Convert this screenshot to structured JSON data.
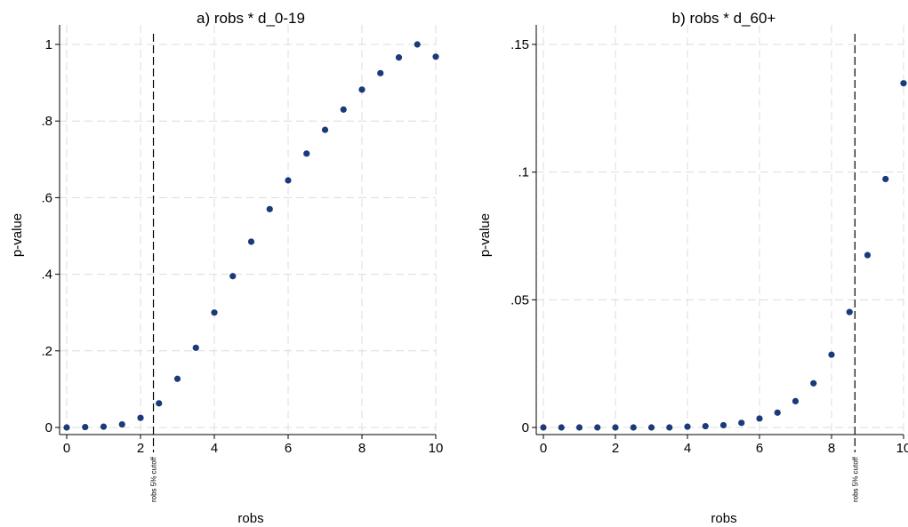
{
  "chart_data": [
    {
      "type": "scatter",
      "title": "a) robs * d_0-19",
      "xlabel": "robs",
      "ylabel": "p-value",
      "xlim": [
        0,
        10
      ],
      "ylim": [
        0,
        1
      ],
      "xticks": [
        0,
        2,
        4,
        6,
        8,
        10
      ],
      "xtick_labels": [
        "0",
        "2",
        "4",
        "6",
        "8",
        "10"
      ],
      "yticks": [
        0,
        0.2,
        0.4,
        0.6,
        0.8,
        1
      ],
      "ytick_labels": [
        "0",
        ".2",
        ".4",
        ".6",
        ".8",
        "1"
      ],
      "grid": true,
      "cutoff": {
        "x": 2.35,
        "label": "robs 5% cutoff"
      },
      "x": [
        0,
        0.5,
        1,
        1.5,
        2,
        2.5,
        3,
        3.5,
        4,
        4.5,
        5,
        5.5,
        6,
        6.5,
        7,
        7.5,
        8,
        8.5,
        9,
        9.5,
        10
      ],
      "y": [
        0.0,
        0.001,
        0.002,
        0.008,
        0.025,
        0.063,
        0.127,
        0.208,
        0.3,
        0.395,
        0.485,
        0.57,
        0.645,
        0.715,
        0.777,
        0.83,
        0.882,
        0.925,
        0.966,
        1.0,
        0.968
      ]
    },
    {
      "type": "scatter",
      "title": "b) robs * d_60+",
      "xlabel": "robs",
      "ylabel": "p-value",
      "xlim": [
        0,
        10
      ],
      "ylim": [
        0,
        0.15
      ],
      "xticks": [
        0,
        2,
        4,
        6,
        8,
        10
      ],
      "xtick_labels": [
        "0",
        "2",
        "4",
        "6",
        "8",
        "10"
      ],
      "yticks": [
        0,
        0.05,
        0.1,
        0.15
      ],
      "ytick_labels": [
        "0",
        ".05",
        ".1",
        ".15"
      ],
      "grid": true,
      "cutoff": {
        "x": 8.65,
        "label": "robs 5% cutoff"
      },
      "x": [
        0,
        0.5,
        1,
        1.5,
        2,
        2.5,
        3,
        3.5,
        4,
        4.5,
        5,
        5.5,
        6,
        6.5,
        7,
        7.5,
        8,
        8.5,
        9,
        9.5,
        10
      ],
      "y": [
        0.0,
        0.0,
        0.0,
        0.0,
        0.0,
        0.0,
        0.0,
        0.0,
        0.0003,
        0.0005,
        0.0009,
        0.0018,
        0.0035,
        0.0058,
        0.0103,
        0.0173,
        0.0285,
        0.0452,
        0.0675,
        0.0973,
        0.1348
      ]
    }
  ]
}
